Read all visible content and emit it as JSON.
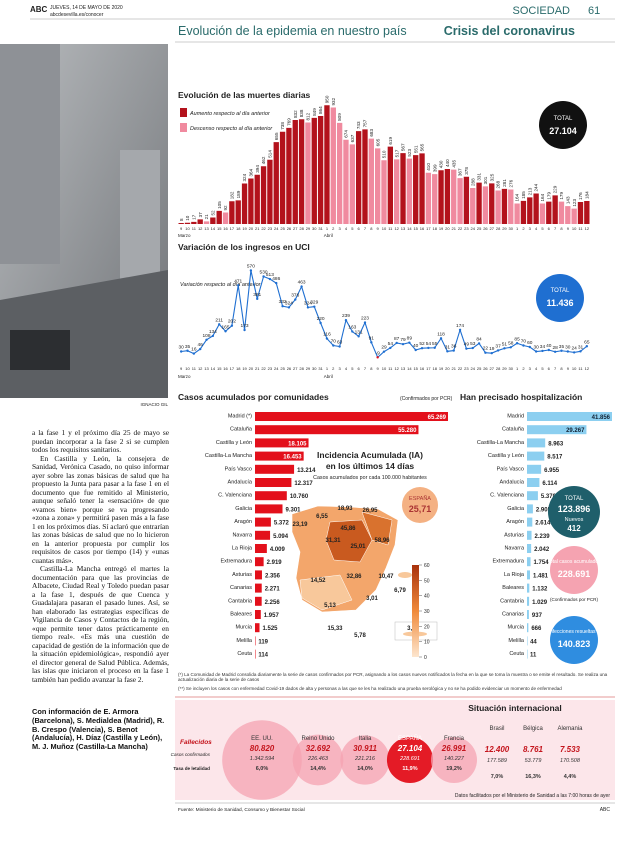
{
  "header": {
    "brand": "ABC",
    "date": "JUEVES, 14 DE MAYO DE 2020",
    "url": "abcdesevilla.es/conocer",
    "section": "SOCIEDAD",
    "page": "61",
    "title": "Evolución de la epidemia en nuestro país",
    "kicker": "Crisis del coronavirus"
  },
  "photo": {
    "credit": "IGNACIO GIL"
  },
  "deaths_chart": {
    "type": "bar",
    "title": "Evolución de las muertes diarias",
    "legend": [
      "Aumento respecto al día anterior",
      "Descenso respecto al día anterior"
    ],
    "colors": [
      "#b3121c",
      "#f08a9f"
    ],
    "months": [
      "Marzo",
      "Abril"
    ],
    "categories": [
      "9",
      "10",
      "11",
      "12",
      "13",
      "14",
      "15",
      "16",
      "17",
      "18",
      "19",
      "20",
      "21",
      "22",
      "23",
      "24",
      "25",
      "26",
      "27",
      "28",
      "29",
      "30",
      "31",
      "1",
      "2",
      "3",
      "4",
      "5",
      "6",
      "7",
      "8",
      "9",
      "10",
      "11",
      "12",
      "13",
      "14",
      "15",
      "16",
      "17",
      "18",
      "19",
      "20",
      "21",
      "22",
      "23",
      "24",
      "25",
      "26",
      "27",
      "28",
      "29",
      "30",
      "1",
      "2",
      "3",
      "4",
      "5",
      "6",
      "7",
      "8",
      "9",
      "10",
      "11",
      "12"
    ],
    "values": [
      8,
      10,
      17,
      37,
      21,
      52,
      105,
      92,
      182,
      189,
      324,
      364,
      394,
      462,
      514,
      655,
      738,
      769,
      832,
      838,
      812,
      849,
      864,
      950,
      932,
      809,
      674,
      637,
      743,
      757,
      683,
      605,
      510,
      619,
      517,
      567,
      523,
      551,
      565,
      410,
      399,
      430,
      440,
      435,
      367,
      378,
      288,
      331,
      301,
      325,
      268,
      281,
      276,
      164,
      185,
      213,
      244,
      164,
      179,
      229,
      179,
      143,
      123,
      176,
      184
    ],
    "total_label": "TOTAL",
    "total": "27.104"
  },
  "icu_chart": {
    "type": "line",
    "title": "Variación de los ingresos en UCI",
    "subtitle": "Variación respecto al día anterior",
    "color": "#1f6fd1",
    "total_label": "TOTAL",
    "total": "11.436",
    "values": [
      30,
      35,
      16,
      46,
      108,
      134,
      211,
      165,
      202,
      471,
      173,
      570,
      381,
      530,
      513,
      486,
      332,
      324,
      376,
      463,
      324,
      329,
      220,
      116,
      70,
      63,
      239,
      163,
      131,
      223,
      91,
      -9,
      29,
      54,
      87,
      79,
      89,
      40,
      52,
      54,
      55,
      118,
      31,
      36,
      174,
      49,
      53,
      84,
      22,
      19,
      37,
      51,
      58,
      85,
      70,
      60,
      30,
      34,
      40,
      28,
      35,
      30,
      24,
      31,
      65
    ]
  },
  "cases_chart": {
    "type": "bar",
    "title": "Casos acumulados por comunidades",
    "note": "(Confirmados por PCR)",
    "color": "#e3101b",
    "categories": [
      "Madrid (*)",
      "Cataluña",
      "Castilla y León",
      "Castilla-La Mancha",
      "País Vasco",
      "Andalucía",
      "C. Valenciana",
      "Galicia",
      "Aragón",
      "Navarra",
      "La Rioja",
      "Extremadura",
      "Asturias",
      "Canarias",
      "Cantabria",
      "Baleares",
      "Murcia",
      "Melilla",
      "Ceuta"
    ],
    "values": [
      65269,
      55280,
      18105,
      16453,
      13214,
      12317,
      10760,
      9301,
      5372,
      5094,
      4009,
      2919,
      2356,
      2271,
      2256,
      1957,
      1525,
      119,
      114
    ],
    "value_labels": [
      "65.269",
      "55.280",
      "18.105",
      "16.453",
      "13.214",
      "12.317",
      "10.760",
      "9.301",
      "5.372",
      "5.094",
      "4.009",
      "2.919",
      "2.356",
      "2.271",
      "2.256",
      "1.957",
      "1.525",
      "119",
      "114"
    ]
  },
  "hosp_chart": {
    "type": "bar",
    "title": "Han precisado hospitalización",
    "color": "#8ccff0",
    "categories": [
      "Madrid",
      "Cataluña",
      "Castilla-La Mancha",
      "Castilla y León",
      "País Vasco",
      "Andalucía",
      "C. Valenciana",
      "Galicia",
      "Aragón",
      "Asturias",
      "Navarra",
      "Extremadura",
      "La Rioja",
      "Baleares",
      "Cantabria",
      "Canarias",
      "Murcia",
      "Melilla",
      "Ceuta"
    ],
    "values": [
      41856,
      29267,
      8963,
      8517,
      6955,
      6114,
      5370,
      2905,
      2614,
      2239,
      2042,
      1754,
      1481,
      1132,
      1029,
      937,
      666,
      44,
      11
    ],
    "value_labels": [
      "41.856",
      "29.267",
      "8.963",
      "8.517",
      "6.955",
      "6.114",
      "5.370",
      "2.905",
      "2.614",
      "2.239",
      "2.042",
      "1.754",
      "1.481",
      "1.132",
      "1.029",
      "937",
      "666",
      "44",
      "11"
    ],
    "total": {
      "label": "TOTAL",
      "value": "123.896",
      "new_label": "Nuevos",
      "new": "412"
    },
    "cases_total": {
      "label": "Total casos acumulados",
      "value": "228.691",
      "note": "(Confirmados por PCR)"
    },
    "recovered": {
      "label": "Infecciones resueltas**",
      "value": "140.823"
    }
  },
  "map": {
    "title": "Incidencia Acumulada (IA)",
    "title2": "en los últimos 14 días",
    "subtitle": "Casos acumulados por cada 100.000 habitantes",
    "spain_label": "ESPAÑA",
    "spain_value": "25,71",
    "labels": [
      "6,55",
      "18,93",
      "26,95",
      "23,19",
      "45,86",
      "31,31",
      "25,01",
      "58,96",
      "14,52",
      "32,86",
      "10,47",
      "6,79",
      "5,13",
      "3,01",
      "15,33",
      "5,78",
      "3,20"
    ],
    "scale": [
      0,
      10,
      20,
      30,
      40,
      50,
      60
    ]
  },
  "notes": [
    "(*) La Comunidad de Madrid consolida diariamente la serie de casos confirmados por PCR, asignando a los casos nuevos notificados la fecha en la que se toma la muestra o se emite el resultado. Se realiza una actualización diaria de la serie de casos",
    "(**) Se incluyen los casos con enfermedad Covid-19 dados de alta y personas a las que se les ha realizado una prueba serológica y no se ha podido evidenciar un momento de enfermedad"
  ],
  "international": {
    "title": "Situación internacional",
    "legend": [
      "Fallecidos",
      "Casos confirmados",
      "Tasa de letalidad"
    ],
    "countries": [
      {
        "name": "EE. UU.",
        "deaths": 80820,
        "deaths_label": "80.820",
        "cases": "1.342.594",
        "rate": "6,0%"
      },
      {
        "name": "Reino Unido",
        "deaths": 32692,
        "deaths_label": "32.692",
        "cases": "226.463",
        "rate": "14,4%"
      },
      {
        "name": "Italia",
        "deaths": 30911,
        "deaths_label": "30.911",
        "cases": "221.216",
        "rate": "14,0%"
      },
      {
        "name": "ESPAÑA",
        "deaths": 27104,
        "deaths_label": "27.104",
        "cases": "228.691",
        "rate": "11,9%"
      },
      {
        "name": "Francia",
        "deaths": 26991,
        "deaths_label": "26.991",
        "cases": "140.227",
        "rate": "19,2%"
      },
      {
        "name": "Brasil",
        "deaths": 12400,
        "deaths_label": "12.400",
        "cases": "177.589",
        "rate": "7,0%"
      },
      {
        "name": "Bélgica",
        "deaths": 8761,
        "deaths_label": "8.761",
        "cases": "53.779",
        "rate": "16,3%"
      },
      {
        "name": "Alemania",
        "deaths": 7533,
        "deaths_label": "7.533",
        "cases": "170.508",
        "rate": "4,4%"
      }
    ],
    "footer": "Datos facilitados por el Ministerio de Sanidad a las 7:00 horas de ayer"
  },
  "article": {
    "paragraphs": [
      "a la fase 1 y el próximo día 25 de mayo se puedan incorporar a la fase 2 si se cumplen todos los requisitos sanitarios.",
      "En Castilla y León, la consejera de Sanidad, Verónica Casado, no quiso informar ayer sobre las zonas básicas de salud que ha propuesto la Junta para pasar a la fase 1 en el documento que fue remitido al Ministerio, aunque señaló tener la «sensación» de que «vamos bien» porque se va progresando «zona a zona» y permitirá pasen más a la fase 1 en los próximos días. Sí aclaró que entrarían las zonas básicas de salud que no lo hicieron en la anterior propuesta por cumplir los requisitos de casos por tiempo (14) y «unas cuantas más».",
      "Castilla-La Mancha entregó el martes la documentación para que las provincias de Albacete, Ciudad Real y Toledo puedan pasar a la fase 1, después de que Cuenca y Guadalajara pasaran el pasado lunes. Así, se han elaborado las estrategias específicas de Vigilancia de Casos y Contactos de la región, «que permite tener datos prácticamente en tiempo real». «Es más una cuestión de capacidad de gestión de la información que de la situación epidemiológica», respondió ayer el director general de Salud Pública. Además, las islas que iniciaron el proceso en la fase 1 también han pedido avanzar la fase 2."
    ],
    "credit": "Con información de E. Armora (Barcelona), S. Medialdea (Madrid), R. B. Crespo (Valencia), S. Benot (Andalucía), H. Díaz (Castilla y León), M. J. Muñoz (Castilla-La Mancha)"
  },
  "source": "Fuente: Ministerio de Sanidad, Consumo y Bienestar Social",
  "footer_brand": "ABC"
}
